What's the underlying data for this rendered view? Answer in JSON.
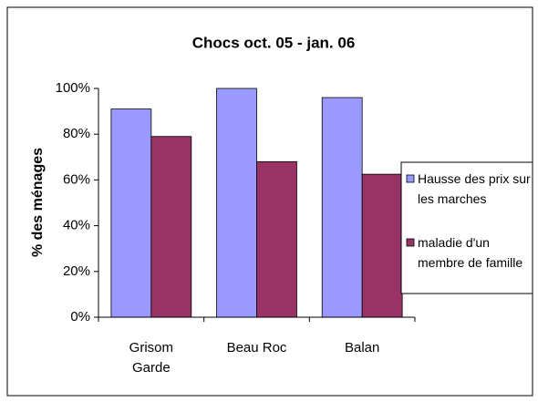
{
  "chart_data": {
    "type": "bar",
    "title": "Chocs oct. 05 - jan. 06",
    "y_label": "% des ménages",
    "categories": [
      "Grisom Garde",
      "Beau Roc",
      "Balan"
    ],
    "series": [
      {
        "name": "Hausse des prix sur les marches",
        "color": "#9999ff",
        "values": [
          91,
          100,
          96
        ]
      },
      {
        "name": "maladie d'un membre de famille",
        "color": "#993366",
        "values": [
          79,
          68,
          62.5
        ]
      }
    ],
    "ylim": [
      0,
      100
    ],
    "yticks": [
      {
        "value": 0,
        "label": "0%"
      },
      {
        "value": 20,
        "label": "20%"
      },
      {
        "value": 40,
        "label": "40%"
      },
      {
        "value": 60,
        "label": "60%"
      },
      {
        "value": 80,
        "label": "80%"
      },
      {
        "value": 100,
        "label": "100%"
      }
    ],
    "legend": "right"
  }
}
